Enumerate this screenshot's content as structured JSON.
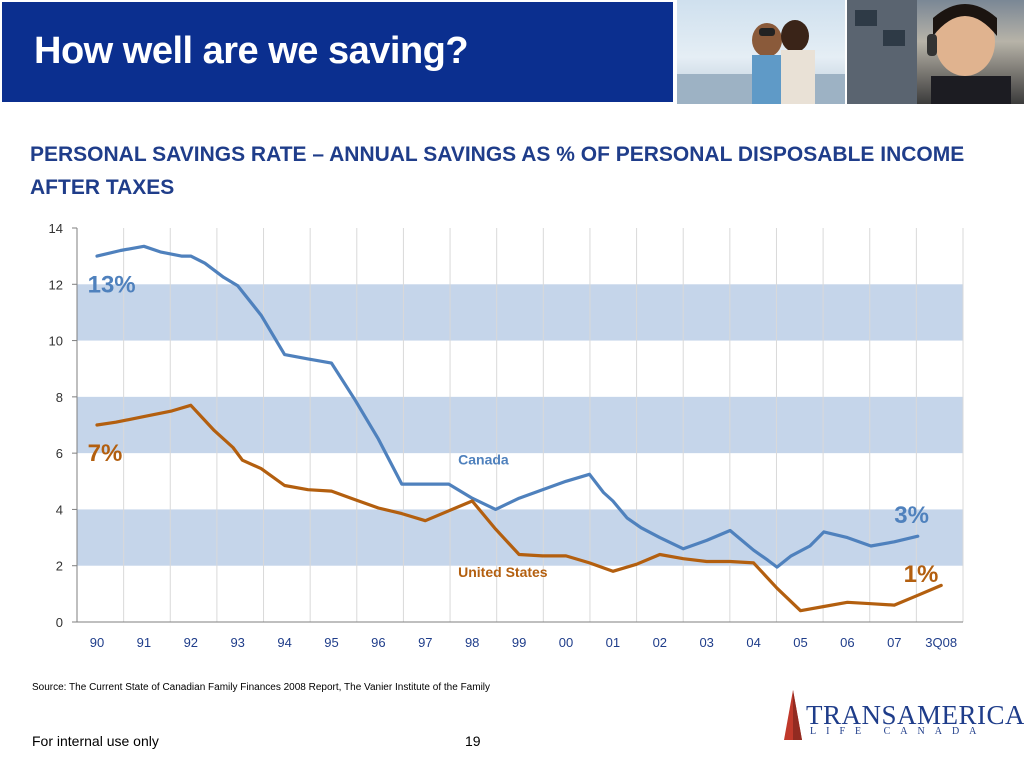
{
  "header": {
    "title": "How well are we saving?"
  },
  "chart_title": "PERSONAL SAVINGS RATE – ANNUAL SAVINGS AS % OF PERSONAL DISPOSABLE INCOME AFTER TAXES",
  "source": "Source: The Current State of Canadian Family Finances 2008 Report, The Vanier Institute of the Family",
  "footer": {
    "left_text": "For internal use only",
    "page_number": "19"
  },
  "logo": {
    "word": "TRANSAMERICA",
    "sub": "LIFE CANADA"
  },
  "colors": {
    "header_blue": "#0b2f8f",
    "title_blue": "#1f3d8a",
    "canada": "#4f81bd",
    "united_states": "#b35f0f",
    "band": "#c5d5ea"
  },
  "chart_data": {
    "type": "line",
    "title": "PERSONAL SAVINGS RATE – ANNUAL SAVINGS AS % OF PERSONAL DISPOSABLE INCOME AFTER TAXES",
    "xlabel": "",
    "ylabel": "",
    "categories": [
      "90",
      "91",
      "92",
      "93",
      "94",
      "95",
      "96",
      "97",
      "98",
      "99",
      "00",
      "01",
      "02",
      "03",
      "04",
      "05",
      "06",
      "07",
      "3Q08"
    ],
    "ylim": [
      0,
      14
    ],
    "yticks": [
      0,
      2,
      4,
      6,
      8,
      10,
      12,
      14
    ],
    "grid": "vertical lines at each year, alternating horizontal bands",
    "series": [
      {
        "name": "Canada",
        "color": "#4f81bd",
        "points": [
          [
            0,
            13.0
          ],
          [
            0.5,
            13.2
          ],
          [
            1.0,
            13.35
          ],
          [
            1.35,
            13.15
          ],
          [
            1.8,
            13.0
          ],
          [
            2.0,
            13.0
          ],
          [
            2.3,
            12.75
          ],
          [
            2.7,
            12.25
          ],
          [
            3.0,
            11.95
          ],
          [
            3.5,
            10.9
          ],
          [
            4.0,
            9.5
          ],
          [
            4.5,
            9.35
          ],
          [
            5.0,
            9.2
          ],
          [
            5.5,
            7.9
          ],
          [
            6.0,
            6.5
          ],
          [
            6.5,
            4.9
          ],
          [
            7.0,
            4.9
          ],
          [
            7.5,
            4.9
          ],
          [
            8.0,
            4.4
          ],
          [
            8.5,
            4.0
          ],
          [
            9.0,
            4.4
          ],
          [
            9.5,
            4.7
          ],
          [
            10.0,
            5.0
          ],
          [
            10.5,
            5.25
          ],
          [
            10.8,
            4.6
          ],
          [
            11.0,
            4.3
          ],
          [
            11.3,
            3.7
          ],
          [
            11.6,
            3.35
          ],
          [
            12.0,
            3.0
          ],
          [
            12.5,
            2.6
          ],
          [
            13.0,
            2.9
          ],
          [
            13.5,
            3.25
          ],
          [
            14.0,
            2.55
          ],
          [
            14.3,
            2.2
          ],
          [
            14.5,
            1.95
          ],
          [
            14.8,
            2.35
          ],
          [
            15.2,
            2.7
          ],
          [
            15.5,
            3.2
          ],
          [
            16.0,
            3.0
          ],
          [
            16.5,
            2.7
          ],
          [
            17.0,
            2.85
          ],
          [
            17.5,
            3.05
          ]
        ]
      },
      {
        "name": "United States",
        "color": "#b35f0f",
        "points": [
          [
            0,
            7.0
          ],
          [
            0.4,
            7.1
          ],
          [
            1.0,
            7.3
          ],
          [
            1.6,
            7.5
          ],
          [
            2.0,
            7.7
          ],
          [
            2.5,
            6.8
          ],
          [
            2.9,
            6.2
          ],
          [
            3.1,
            5.75
          ],
          [
            3.5,
            5.45
          ],
          [
            4.0,
            4.85
          ],
          [
            4.5,
            4.7
          ],
          [
            5.0,
            4.65
          ],
          [
            5.5,
            4.35
          ],
          [
            6.0,
            4.05
          ],
          [
            6.5,
            3.85
          ],
          [
            7.0,
            3.6
          ],
          [
            7.5,
            3.95
          ],
          [
            8.0,
            4.3
          ],
          [
            8.5,
            3.3
          ],
          [
            9.0,
            2.4
          ],
          [
            9.5,
            2.35
          ],
          [
            10.0,
            2.35
          ],
          [
            10.5,
            2.1
          ],
          [
            11.0,
            1.8
          ],
          [
            11.5,
            2.05
          ],
          [
            12.0,
            2.4
          ],
          [
            12.5,
            2.25
          ],
          [
            13.0,
            2.15
          ],
          [
            13.5,
            2.15
          ],
          [
            14.0,
            2.1
          ],
          [
            14.5,
            1.2
          ],
          [
            15.0,
            0.4
          ],
          [
            15.5,
            0.55
          ],
          [
            16.0,
            0.7
          ],
          [
            16.5,
            0.65
          ],
          [
            17.0,
            0.6
          ],
          [
            17.5,
            0.95
          ],
          [
            18.0,
            1.3
          ]
        ]
      }
    ],
    "annotations": [
      {
        "text": "13%",
        "x": -0.2,
        "y": 12.0,
        "color": "#4f81bd"
      },
      {
        "text": "7%",
        "x": -0.2,
        "y": 6.0,
        "color": "#b35f0f"
      },
      {
        "text": "Canada",
        "x": 7.7,
        "y": 5.6,
        "color": "#4f81bd"
      },
      {
        "text": "3%",
        "x": 17.0,
        "y": 3.8,
        "color": "#4f81bd"
      },
      {
        "text": "United States",
        "x": 7.7,
        "y": 1.6,
        "color": "#b35f0f"
      },
      {
        "text": "1%",
        "x": 17.2,
        "y": 1.7,
        "color": "#b35f0f"
      }
    ]
  }
}
